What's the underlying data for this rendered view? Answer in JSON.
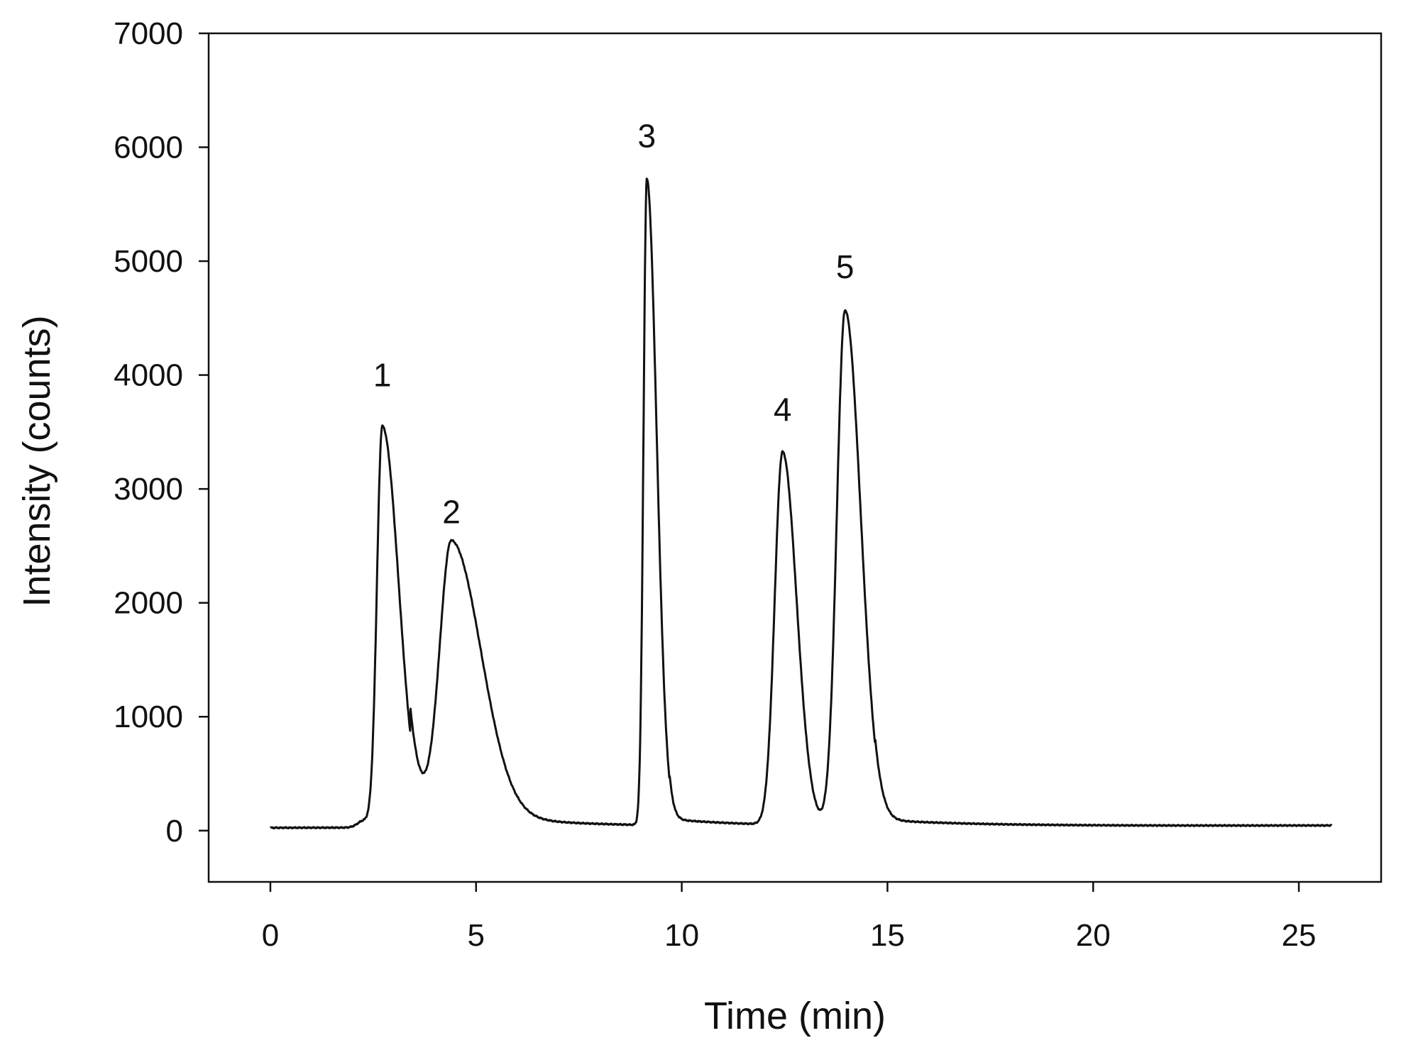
{
  "chart_data": {
    "type": "line",
    "xlabel": "Time (min)",
    "ylabel": "Intensity (counts)",
    "xlim": [
      -1.5,
      27
    ],
    "ylim": [
      -450,
      7000
    ],
    "xticks": [
      "0",
      "5",
      "10",
      "15",
      "20",
      "25"
    ],
    "yticks": [
      "0",
      "1000",
      "2000",
      "3000",
      "4000",
      "5000",
      "6000",
      "7000"
    ],
    "grid": false,
    "legend": "none",
    "line_color": "#111111",
    "baseline": {
      "start": 25,
      "end": 45
    },
    "trace_range": [
      0,
      25.8
    ],
    "peaks": [
      {
        "label": "1",
        "time": 2.72,
        "height": 3550,
        "label_y": 4000
      },
      {
        "label": "2",
        "time": 4.4,
        "height": 2400,
        "label_y": 2800
      },
      {
        "label": "3",
        "time": 9.15,
        "height": 5700,
        "label_y": 6100
      },
      {
        "label": "4",
        "time": 12.45,
        "height": 3300,
        "label_y": 3700
      },
      {
        "label": "5",
        "time": 13.97,
        "height": 4550,
        "label_y": 4950
      }
    ]
  }
}
